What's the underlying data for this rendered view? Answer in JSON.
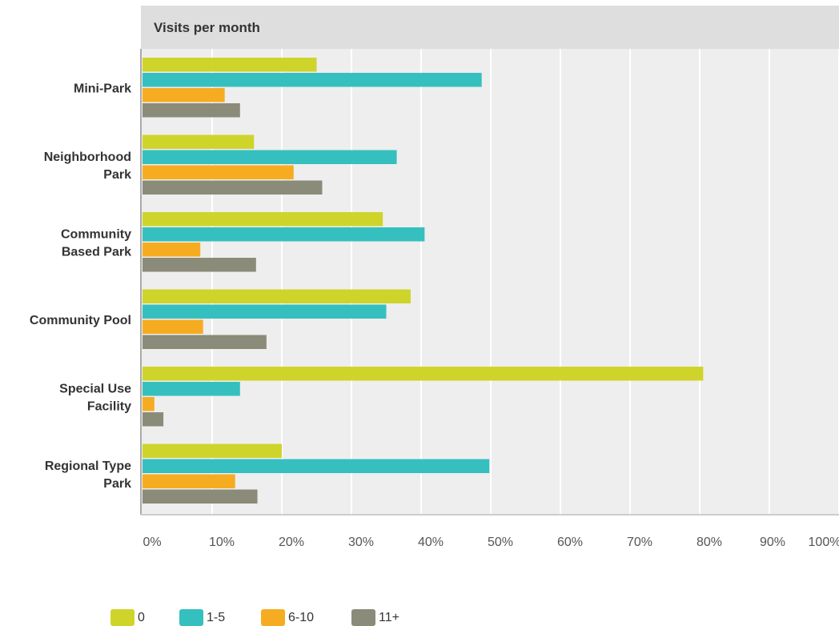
{
  "chart_data": {
    "type": "bar",
    "orientation": "horizontal",
    "title": "Visits per month",
    "categories": [
      [
        "Mini-Park"
      ],
      [
        "Neighborhood",
        "Park"
      ],
      [
        "Community",
        "Based Park"
      ],
      [
        "Community Pool"
      ],
      [
        "Special Use",
        "Facility"
      ],
      [
        "Regional Type",
        "Park"
      ]
    ],
    "series": [
      {
        "name": "0",
        "color": "#cfd42a",
        "values": [
          25,
          16,
          34.5,
          38.5,
          80.5,
          20
        ]
      },
      {
        "name": "1-5",
        "color": "#36bfbf",
        "values": [
          48.7,
          36.5,
          40.5,
          35,
          14,
          49.8
        ]
      },
      {
        "name": "6-10",
        "color": "#f6ac21",
        "values": [
          11.8,
          21.7,
          8.3,
          8.7,
          1.7,
          13.3
        ]
      },
      {
        "name": "11+",
        "color": "#8b8b7a",
        "values": [
          14,
          25.8,
          16.3,
          17.8,
          3,
          16.5
        ]
      }
    ],
    "xlim": [
      0,
      100
    ],
    "xticks": [
      "0%",
      "10%",
      "20%",
      "30%",
      "40%",
      "50%",
      "60%",
      "70%",
      "80%",
      "90%",
      "100%"
    ],
    "grid": true,
    "legend": "bottom-left"
  }
}
